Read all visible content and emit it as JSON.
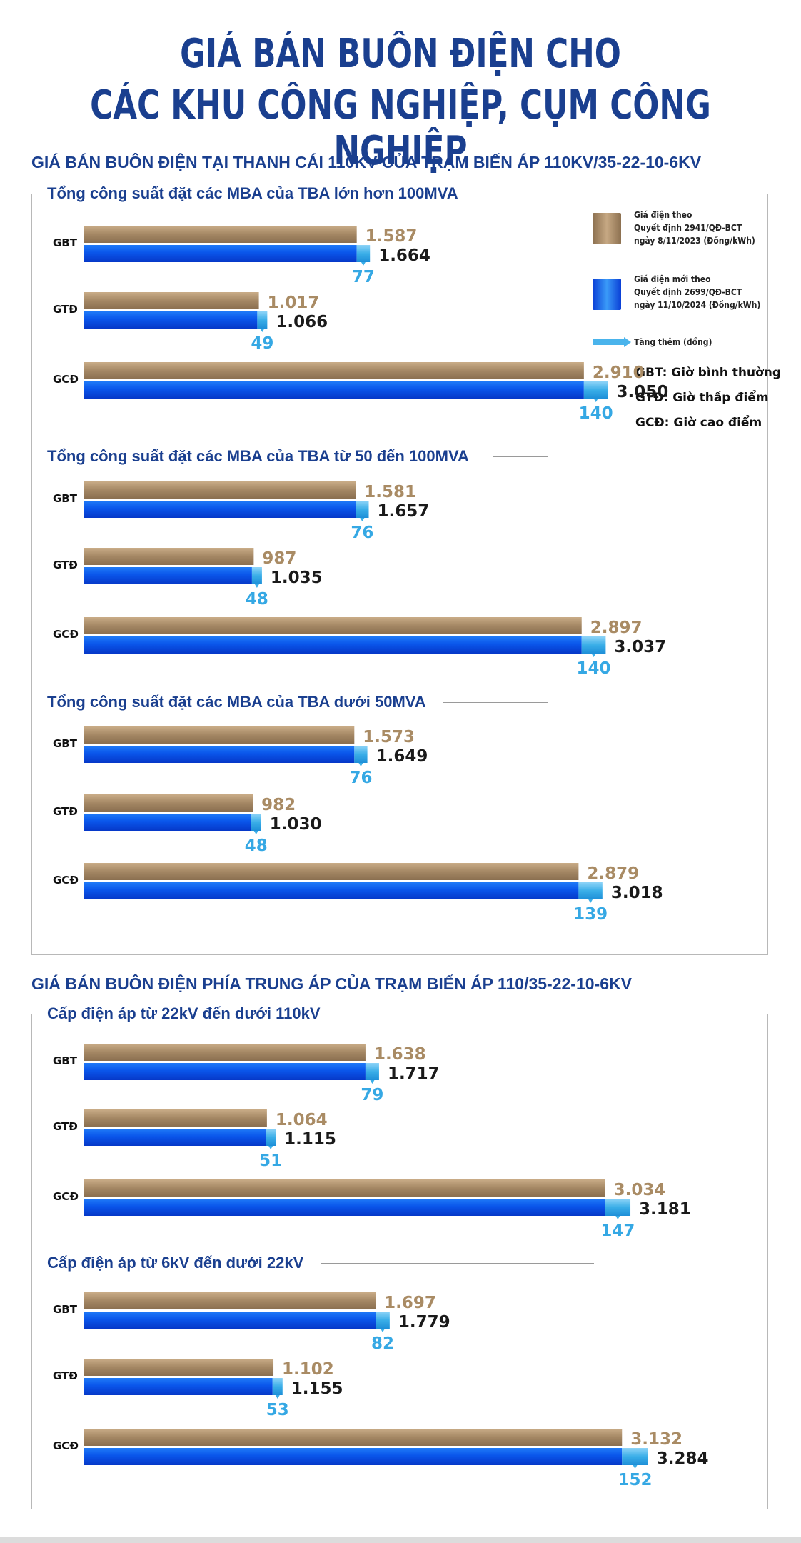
{
  "title": {
    "line1": "GIÁ BÁN BUÔN ĐIỆN CHO",
    "line2": "CÁC KHU CÔNG NGHIỆP, CỤM CÔNG NGHIỆP"
  },
  "section1": {
    "title": "GIÁ BÁN BUÔN ĐIỆN TẠI THANH CÁI 110KV CỦA TRẠM BIẾN ÁP 110KV/35-22-10-6KV"
  },
  "section2": {
    "title": "GIÁ BÁN BUÔN ĐIỆN PHÍA TRUNG ÁP CỦA TRẠM BIẾN ÁP 110/35-22-10-6KV"
  },
  "legend": {
    "old_line1": "Giá điện theo",
    "old_line2": "Quyết định 2941/QĐ-BCT",
    "old_line3": "ngày 8/11/2023 (Đồng/kWh)",
    "new_line1": "Giá điện mới theo",
    "new_line2": "Quyết định 2699/QĐ-BCT",
    "new_line3": "ngày 11/10/2024 (Đồng/kWh)",
    "increase": "Tăng thêm (đồng)",
    "gbt": "GBT: Giờ bình thường",
    "gtd": "GTĐ: Giờ thấp điểm",
    "gcd": "GCĐ: Giờ cao điểm"
  },
  "colors": {
    "title": "#1a3f8f",
    "old_bar": "#a58a68",
    "new_bar": "#0a5bf0",
    "increase": "#3aaee8",
    "new_label": "#1a1a1a"
  },
  "chart_data": [
    {
      "type": "bar",
      "orientation": "horizontal",
      "title": "Tổng công suất đặt các MBA của TBA lớn hơn 100MVA",
      "categories": [
        "GBT",
        "GTĐ",
        "GCĐ"
      ],
      "series": [
        {
          "name": "Giá điện theo Quyết định 2941/QĐ-BCT ngày 8/11/2023 (Đồng/kWh)",
          "values": [
            1587,
            1017,
            2910
          ],
          "labels": [
            "1.587",
            "1.017",
            "2.910"
          ]
        },
        {
          "name": "Giá điện mới theo Quyết định 2699/QĐ-BCT ngày 11/10/2024 (Đồng/kWh)",
          "values": [
            1664,
            1066,
            3050
          ],
          "labels": [
            "1.664",
            "1.066",
            "3.050"
          ]
        },
        {
          "name": "Tăng thêm (đồng)",
          "values": [
            77,
            49,
            140
          ],
          "labels": [
            "77",
            "49",
            "140"
          ]
        }
      ]
    },
    {
      "type": "bar",
      "orientation": "horizontal",
      "title": "Tổng công suất đặt các MBA của TBA từ 50 đến 100MVA",
      "categories": [
        "GBT",
        "GTĐ",
        "GCĐ"
      ],
      "series": [
        {
          "name": "Giá điện theo Quyết định 2941/QĐ-BCT ngày 8/11/2023 (Đồng/kWh)",
          "values": [
            1581,
            987,
            2897
          ],
          "labels": [
            "1.581",
            "987",
            "2.897"
          ]
        },
        {
          "name": "Giá điện mới theo Quyết định 2699/QĐ-BCT ngày 11/10/2024 (Đồng/kWh)",
          "values": [
            1657,
            1035,
            3037
          ],
          "labels": [
            "1.657",
            "1.035",
            "3.037"
          ]
        },
        {
          "name": "Tăng thêm (đồng)",
          "values": [
            76,
            48,
            140
          ],
          "labels": [
            "76",
            "48",
            "140"
          ]
        }
      ]
    },
    {
      "type": "bar",
      "orientation": "horizontal",
      "title": "Tổng công suất đặt các MBA của TBA dưới 50MVA",
      "categories": [
        "GBT",
        "GTĐ",
        "GCĐ"
      ],
      "series": [
        {
          "name": "Giá điện theo Quyết định 2941/QĐ-BCT ngày 8/11/2023 (Đồng/kWh)",
          "values": [
            1573,
            982,
            2879
          ],
          "labels": [
            "1.573",
            "982",
            "2.879"
          ]
        },
        {
          "name": "Giá điện mới theo Quyết định 2699/QĐ-BCT ngày 11/10/2024 (Đồng/kWh)",
          "values": [
            1649,
            1030,
            3018
          ],
          "labels": [
            "1.649",
            "1.030",
            "3.018"
          ]
        },
        {
          "name": "Tăng thêm (đồng)",
          "values": [
            76,
            48,
            139
          ],
          "labels": [
            "76",
            "48",
            "139"
          ]
        }
      ]
    },
    {
      "type": "bar",
      "orientation": "horizontal",
      "title": "Cấp điện áp từ 22kV đến dưới 110kV",
      "categories": [
        "GBT",
        "GTĐ",
        "GCĐ"
      ],
      "series": [
        {
          "name": "Giá điện theo Quyết định 2941/QĐ-BCT ngày 8/11/2023 (Đồng/kWh)",
          "values": [
            1638,
            1064,
            3034
          ],
          "labels": [
            "1.638",
            "1.064",
            "3.034"
          ]
        },
        {
          "name": "Giá điện mới theo Quyết định 2699/QĐ-BCT ngày 11/10/2024 (Đồng/kWh)",
          "values": [
            1717,
            1115,
            3181
          ],
          "labels": [
            "1.717",
            "1.115",
            "3.181"
          ]
        },
        {
          "name": "Tăng thêm (đồng)",
          "values": [
            79,
            51,
            147
          ],
          "labels": [
            "79",
            "51",
            "147"
          ]
        }
      ]
    },
    {
      "type": "bar",
      "orientation": "horizontal",
      "title": "Cấp điện áp từ 6kV đến dưới 22kV",
      "categories": [
        "GBT",
        "GTĐ",
        "GCĐ"
      ],
      "series": [
        {
          "name": "Giá điện theo Quyết định 2941/QĐ-BCT ngày 8/11/2023 (Đồng/kWh)",
          "values": [
            1697,
            1102,
            3132
          ],
          "labels": [
            "1.697",
            "1.102",
            "3.132"
          ]
        },
        {
          "name": "Giá điện mới theo Quyết định 2699/QĐ-BCT ngày 11/10/2024 (Đồng/kWh)",
          "values": [
            1779,
            1155,
            3284
          ],
          "labels": [
            "1.779",
            "1.155",
            "3.284"
          ]
        },
        {
          "name": "Tăng thêm (đồng)",
          "values": [
            82,
            53,
            152
          ],
          "labels": [
            "82",
            "53",
            "152"
          ]
        }
      ]
    }
  ]
}
